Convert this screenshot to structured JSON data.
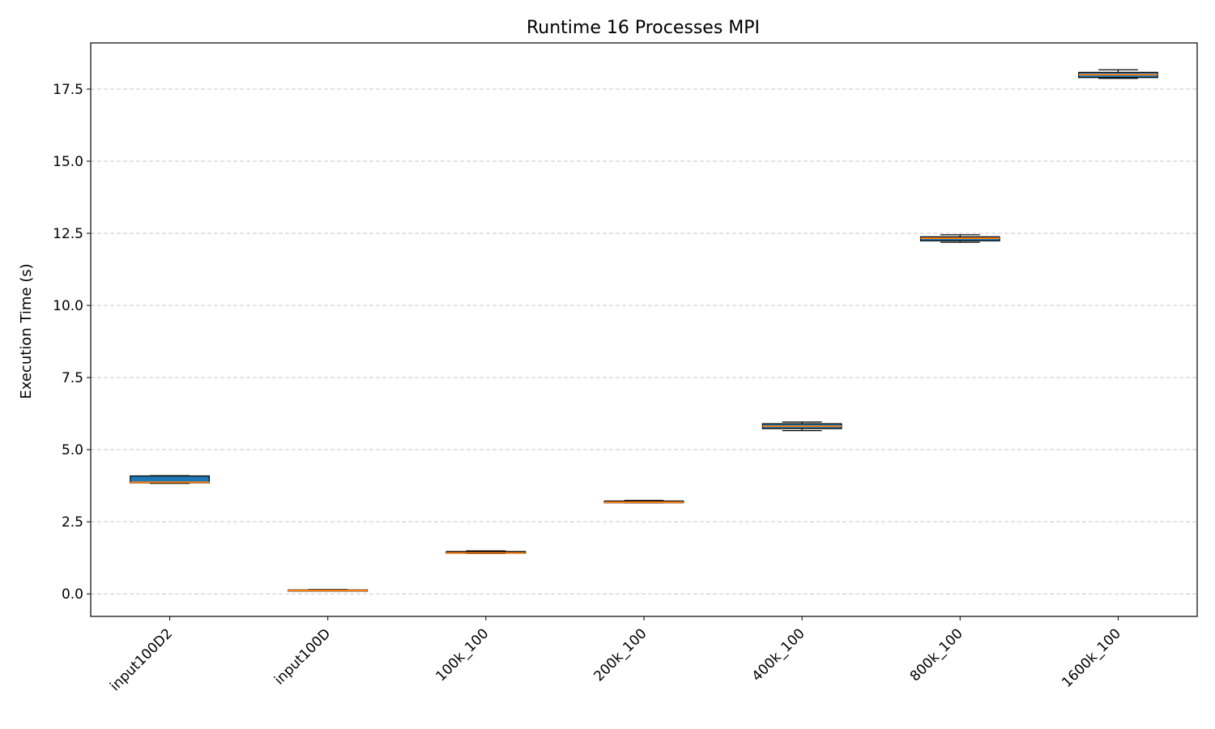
{
  "chart_data": {
    "type": "box",
    "title": "Runtime 16 Processes MPI",
    "xlabel": "",
    "ylabel": "Execution Time (s)",
    "ylim": [
      -0.78,
      19.1
    ],
    "yticks": [
      0.0,
      2.5,
      5.0,
      7.5,
      10.0,
      12.5,
      15.0,
      17.5
    ],
    "ytick_labels": [
      "0.0",
      "2.5",
      "5.0",
      "7.5",
      "10.0",
      "12.5",
      "15.0",
      "17.5"
    ],
    "grid": {
      "y": true,
      "style": "dashed"
    },
    "categories": [
      "input100D2",
      "input100D",
      "100k_100",
      "200k_100",
      "400k_100",
      "800k_100",
      "1600k_100"
    ],
    "boxes": [
      {
        "whislo": 3.83,
        "q1": 3.85,
        "med": 3.87,
        "q3": 4.09,
        "whishi": 4.1
      },
      {
        "whislo": 0.11,
        "q1": 0.11,
        "med": 0.12,
        "q3": 0.14,
        "whishi": 0.15
      },
      {
        "whislo": 1.4,
        "q1": 1.41,
        "med": 1.42,
        "q3": 1.47,
        "whishi": 1.49
      },
      {
        "whislo": 3.16,
        "q1": 3.16,
        "med": 3.18,
        "q3": 3.22,
        "whishi": 3.24
      },
      {
        "whislo": 5.66,
        "q1": 5.73,
        "med": 5.81,
        "q3": 5.9,
        "whishi": 5.96
      },
      {
        "whislo": 12.19,
        "q1": 12.24,
        "med": 12.33,
        "q3": 12.38,
        "whishi": 12.45
      },
      {
        "whislo": 17.87,
        "q1": 17.9,
        "med": 18.0,
        "q3": 18.08,
        "whishi": 18.17
      }
    ],
    "colors": {
      "box_fill": "#1f77b4",
      "box_edge": "#000000",
      "median": "#ff7f0e",
      "grid": "#b0b0b0"
    }
  }
}
